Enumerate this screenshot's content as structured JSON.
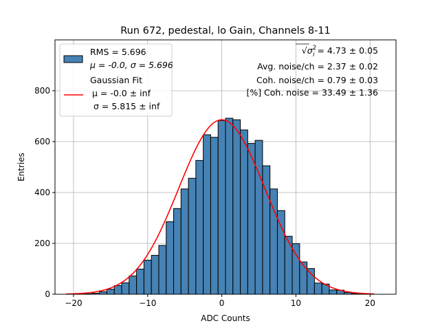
{
  "chart_data": {
    "type": "bar",
    "title": "Run 672, pedestal, lo Gain, Channels 8-11",
    "xlabel": "ADC Counts",
    "ylabel": "Entries",
    "xlim": [
      -22.5,
      23.5
    ],
    "ylim": [
      0,
      1000
    ],
    "xticks": [
      -20,
      -10,
      0,
      10,
      20
    ],
    "xtick_labels": [
      "−20",
      "−10",
      "0",
      "10",
      "20"
    ],
    "yticks": [
      0,
      200,
      400,
      600,
      800
    ],
    "ytick_labels": [
      "0",
      "200",
      "400",
      "600",
      "800"
    ],
    "grid": true,
    "histogram": {
      "name": "RMS = 5.696",
      "label_line2": "μ = -0.0, σ = 5.696",
      "color": "#4682b4",
      "edge_color": "#000000",
      "bins": [
        {
          "x0": -20.5,
          "x1": -19.5,
          "count": 1
        },
        {
          "x0": -19.5,
          "x1": -18.5,
          "count": 1
        },
        {
          "x0": -18.5,
          "x1": -17.5,
          "count": 2
        },
        {
          "x0": -17.5,
          "x1": -16.5,
          "count": 4
        },
        {
          "x0": -16.5,
          "x1": -15.5,
          "count": 10
        },
        {
          "x0": -15.5,
          "x1": -14.5,
          "count": 20
        },
        {
          "x0": -14.5,
          "x1": -13.5,
          "count": 34
        },
        {
          "x0": -13.5,
          "x1": -12.5,
          "count": 45
        },
        {
          "x0": -12.5,
          "x1": -11.5,
          "count": 72
        },
        {
          "x0": -11.5,
          "x1": -10.5,
          "count": 99
        },
        {
          "x0": -10.5,
          "x1": -9.5,
          "count": 134
        },
        {
          "x0": -9.5,
          "x1": -8.5,
          "count": 153
        },
        {
          "x0": -8.5,
          "x1": -7.5,
          "count": 192
        },
        {
          "x0": -7.5,
          "x1": -6.5,
          "count": 285
        },
        {
          "x0": -6.5,
          "x1": -5.5,
          "count": 337
        },
        {
          "x0": -5.5,
          "x1": -4.5,
          "count": 414
        },
        {
          "x0": -4.5,
          "x1": -3.5,
          "count": 456
        },
        {
          "x0": -3.5,
          "x1": -2.5,
          "count": 526
        },
        {
          "x0": -2.5,
          "x1": -1.5,
          "count": 627
        },
        {
          "x0": -1.5,
          "x1": -0.5,
          "count": 617
        },
        {
          "x0": -0.5,
          "x1": 0.5,
          "count": 683
        },
        {
          "x0": 0.5,
          "x1": 1.5,
          "count": 692
        },
        {
          "x0": 1.5,
          "x1": 2.5,
          "count": 686
        },
        {
          "x0": 2.5,
          "x1": 3.5,
          "count": 646
        },
        {
          "x0": 3.5,
          "x1": 4.5,
          "count": 593
        },
        {
          "x0": 4.5,
          "x1": 5.5,
          "count": 605
        },
        {
          "x0": 5.5,
          "x1": 6.5,
          "count": 505
        },
        {
          "x0": 6.5,
          "x1": 7.5,
          "count": 414
        },
        {
          "x0": 7.5,
          "x1": 8.5,
          "count": 329
        },
        {
          "x0": 8.5,
          "x1": 9.5,
          "count": 228
        },
        {
          "x0": 9.5,
          "x1": 10.5,
          "count": 199
        },
        {
          "x0": 10.5,
          "x1": 11.5,
          "count": 127
        },
        {
          "x0": 11.5,
          "x1": 12.5,
          "count": 101
        },
        {
          "x0": 12.5,
          "x1": 13.5,
          "count": 44
        },
        {
          "x0": 13.5,
          "x1": 14.5,
          "count": 40
        },
        {
          "x0": 14.5,
          "x1": 15.5,
          "count": 17
        },
        {
          "x0": 15.5,
          "x1": 16.5,
          "count": 16
        },
        {
          "x0": 16.5,
          "x1": 17.5,
          "count": 7
        },
        {
          "x0": 17.5,
          "x1": 18.5,
          "count": 3
        },
        {
          "x0": 18.5,
          "x1": 19.5,
          "count": 2
        },
        {
          "x0": 19.5,
          "x1": 20.5,
          "count": 1
        }
      ]
    },
    "fit": {
      "name": "Gaussian Fit",
      "label_mu": "μ = -0.0 ± inf",
      "label_sigma": "σ = 5.815 ± inf",
      "color": "#ff0000",
      "mu": 0.0,
      "sigma": 5.815,
      "amplitude": 686,
      "x_range": [
        -21,
        20.5
      ]
    },
    "legend_position": "upper-left",
    "annotations": {
      "position": "top-right",
      "sigma_line": {
        "prefix": "√",
        "symbol": "σ",
        "sup": "2",
        "sub": "i",
        "value": " = 4.73 ± 0.05"
      },
      "avg_noise": "Avg. noise/ch = 2.37 ± 0.02",
      "coh_noise": "Coh. noise/ch = 0.79 ± 0.03",
      "pct_coh_noise": "[%] Coh. noise = 33.49 ± 1.36"
    }
  }
}
